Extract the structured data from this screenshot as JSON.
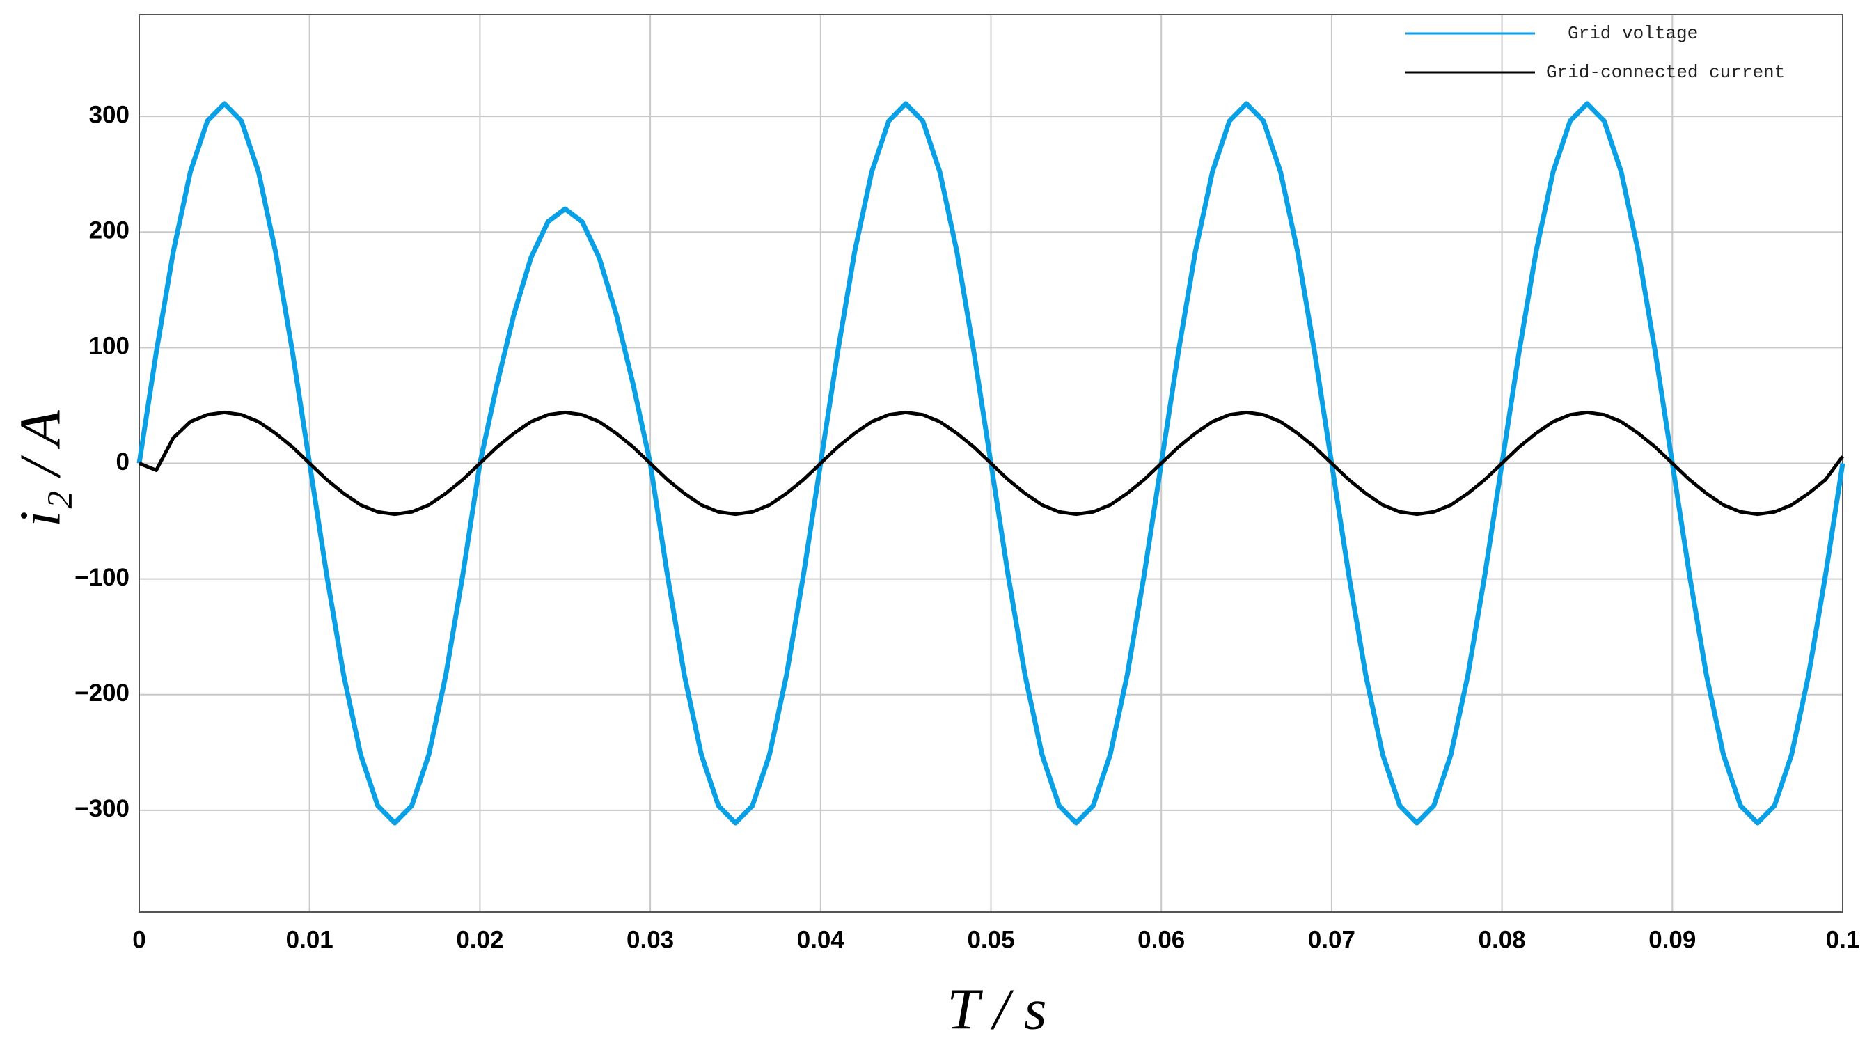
{
  "chart_data": {
    "type": "line",
    "xlabel": "T / s",
    "ylabel": "i₂ / A",
    "x": [
      0,
      0.001,
      0.002,
      0.003,
      0.004,
      0.005,
      0.006,
      0.007,
      0.008,
      0.009,
      0.01,
      0.011,
      0.012,
      0.013,
      0.014,
      0.015,
      0.016,
      0.017,
      0.018,
      0.019,
      0.02,
      0.021,
      0.022,
      0.023,
      0.024,
      0.025,
      0.026,
      0.027,
      0.028,
      0.029,
      0.03,
      0.031,
      0.032,
      0.033,
      0.034,
      0.035,
      0.036,
      0.037,
      0.038,
      0.039,
      0.04,
      0.041,
      0.042,
      0.043,
      0.044,
      0.045,
      0.046,
      0.047,
      0.048,
      0.049,
      0.05,
      0.051,
      0.052,
      0.053,
      0.054,
      0.055,
      0.056,
      0.057,
      0.058,
      0.059,
      0.06,
      0.061,
      0.062,
      0.063,
      0.064,
      0.065,
      0.066,
      0.067,
      0.068,
      0.069,
      0.07,
      0.071,
      0.072,
      0.073,
      0.074,
      0.075,
      0.076,
      0.077,
      0.078,
      0.079,
      0.08,
      0.081,
      0.082,
      0.083,
      0.084,
      0.085,
      0.086,
      0.087,
      0.088,
      0.089,
      0.09,
      0.091,
      0.092,
      0.093,
      0.094,
      0.095,
      0.096,
      0.097,
      0.098,
      0.099,
      0.1
    ],
    "series": [
      {
        "name": "Grid voltage",
        "color": "#0aa0e6",
        "values": [
          0,
          96,
          183,
          252,
          296,
          311,
          296,
          252,
          183,
          96,
          0,
          -96,
          -183,
          -252,
          -296,
          -311,
          -296,
          -252,
          -183,
          -96,
          0,
          68,
          129,
          178,
          209,
          220,
          209,
          178,
          129,
          68,
          0,
          -96,
          -183,
          -252,
          -296,
          -311,
          -296,
          -252,
          -183,
          -96,
          0,
          96,
          183,
          252,
          296,
          311,
          296,
          252,
          183,
          96,
          0,
          -96,
          -183,
          -252,
          -296,
          -311,
          -296,
          -252,
          -183,
          -96,
          0,
          96,
          183,
          252,
          296,
          311,
          296,
          252,
          183,
          96,
          0,
          -96,
          -183,
          -252,
          -296,
          -311,
          -296,
          -252,
          -183,
          -96,
          0,
          96,
          183,
          252,
          296,
          311,
          296,
          252,
          183,
          96,
          0,
          -96,
          -183,
          -252,
          -296,
          -311,
          -296,
          -252,
          -183,
          -96,
          0
        ]
      },
      {
        "name": "Grid-connected current",
        "color": "#000000",
        "values": [
          0,
          -6,
          22,
          36,
          42,
          44,
          42,
          36,
          26,
          14,
          0,
          -14,
          -26,
          -36,
          -42,
          -44,
          -42,
          -36,
          -26,
          -14,
          0,
          14,
          26,
          36,
          42,
          44,
          42,
          36,
          26,
          14,
          0,
          -14,
          -26,
          -36,
          -42,
          -44,
          -42,
          -36,
          -26,
          -14,
          0,
          14,
          26,
          36,
          42,
          44,
          42,
          36,
          26,
          14,
          0,
          -14,
          -26,
          -36,
          -42,
          -44,
          -42,
          -36,
          -26,
          -14,
          0,
          14,
          26,
          36,
          42,
          44,
          42,
          36,
          26,
          14,
          0,
          -14,
          -26,
          -36,
          -42,
          -44,
          -42,
          -36,
          -26,
          -14,
          0,
          14,
          26,
          36,
          42,
          44,
          42,
          36,
          26,
          14,
          0,
          -14,
          -26,
          -36,
          -42,
          -44,
          -42,
          -36,
          -26,
          -14,
          6
        ]
      }
    ],
    "xlim": [
      0,
      0.1
    ],
    "xticks": [
      0,
      0.01,
      0.02,
      0.03,
      0.04,
      0.05,
      0.06,
      0.07,
      0.08,
      0.09,
      0.1
    ],
    "ylim": [
      -388,
      388
    ],
    "yticks": [
      {
        "value": -300,
        "label": "−300"
      },
      {
        "value": -200,
        "label": "−200"
      },
      {
        "value": -100,
        "label": "−100"
      },
      0,
      100,
      200,
      300
    ],
    "grid": true,
    "legend": "top-right"
  }
}
